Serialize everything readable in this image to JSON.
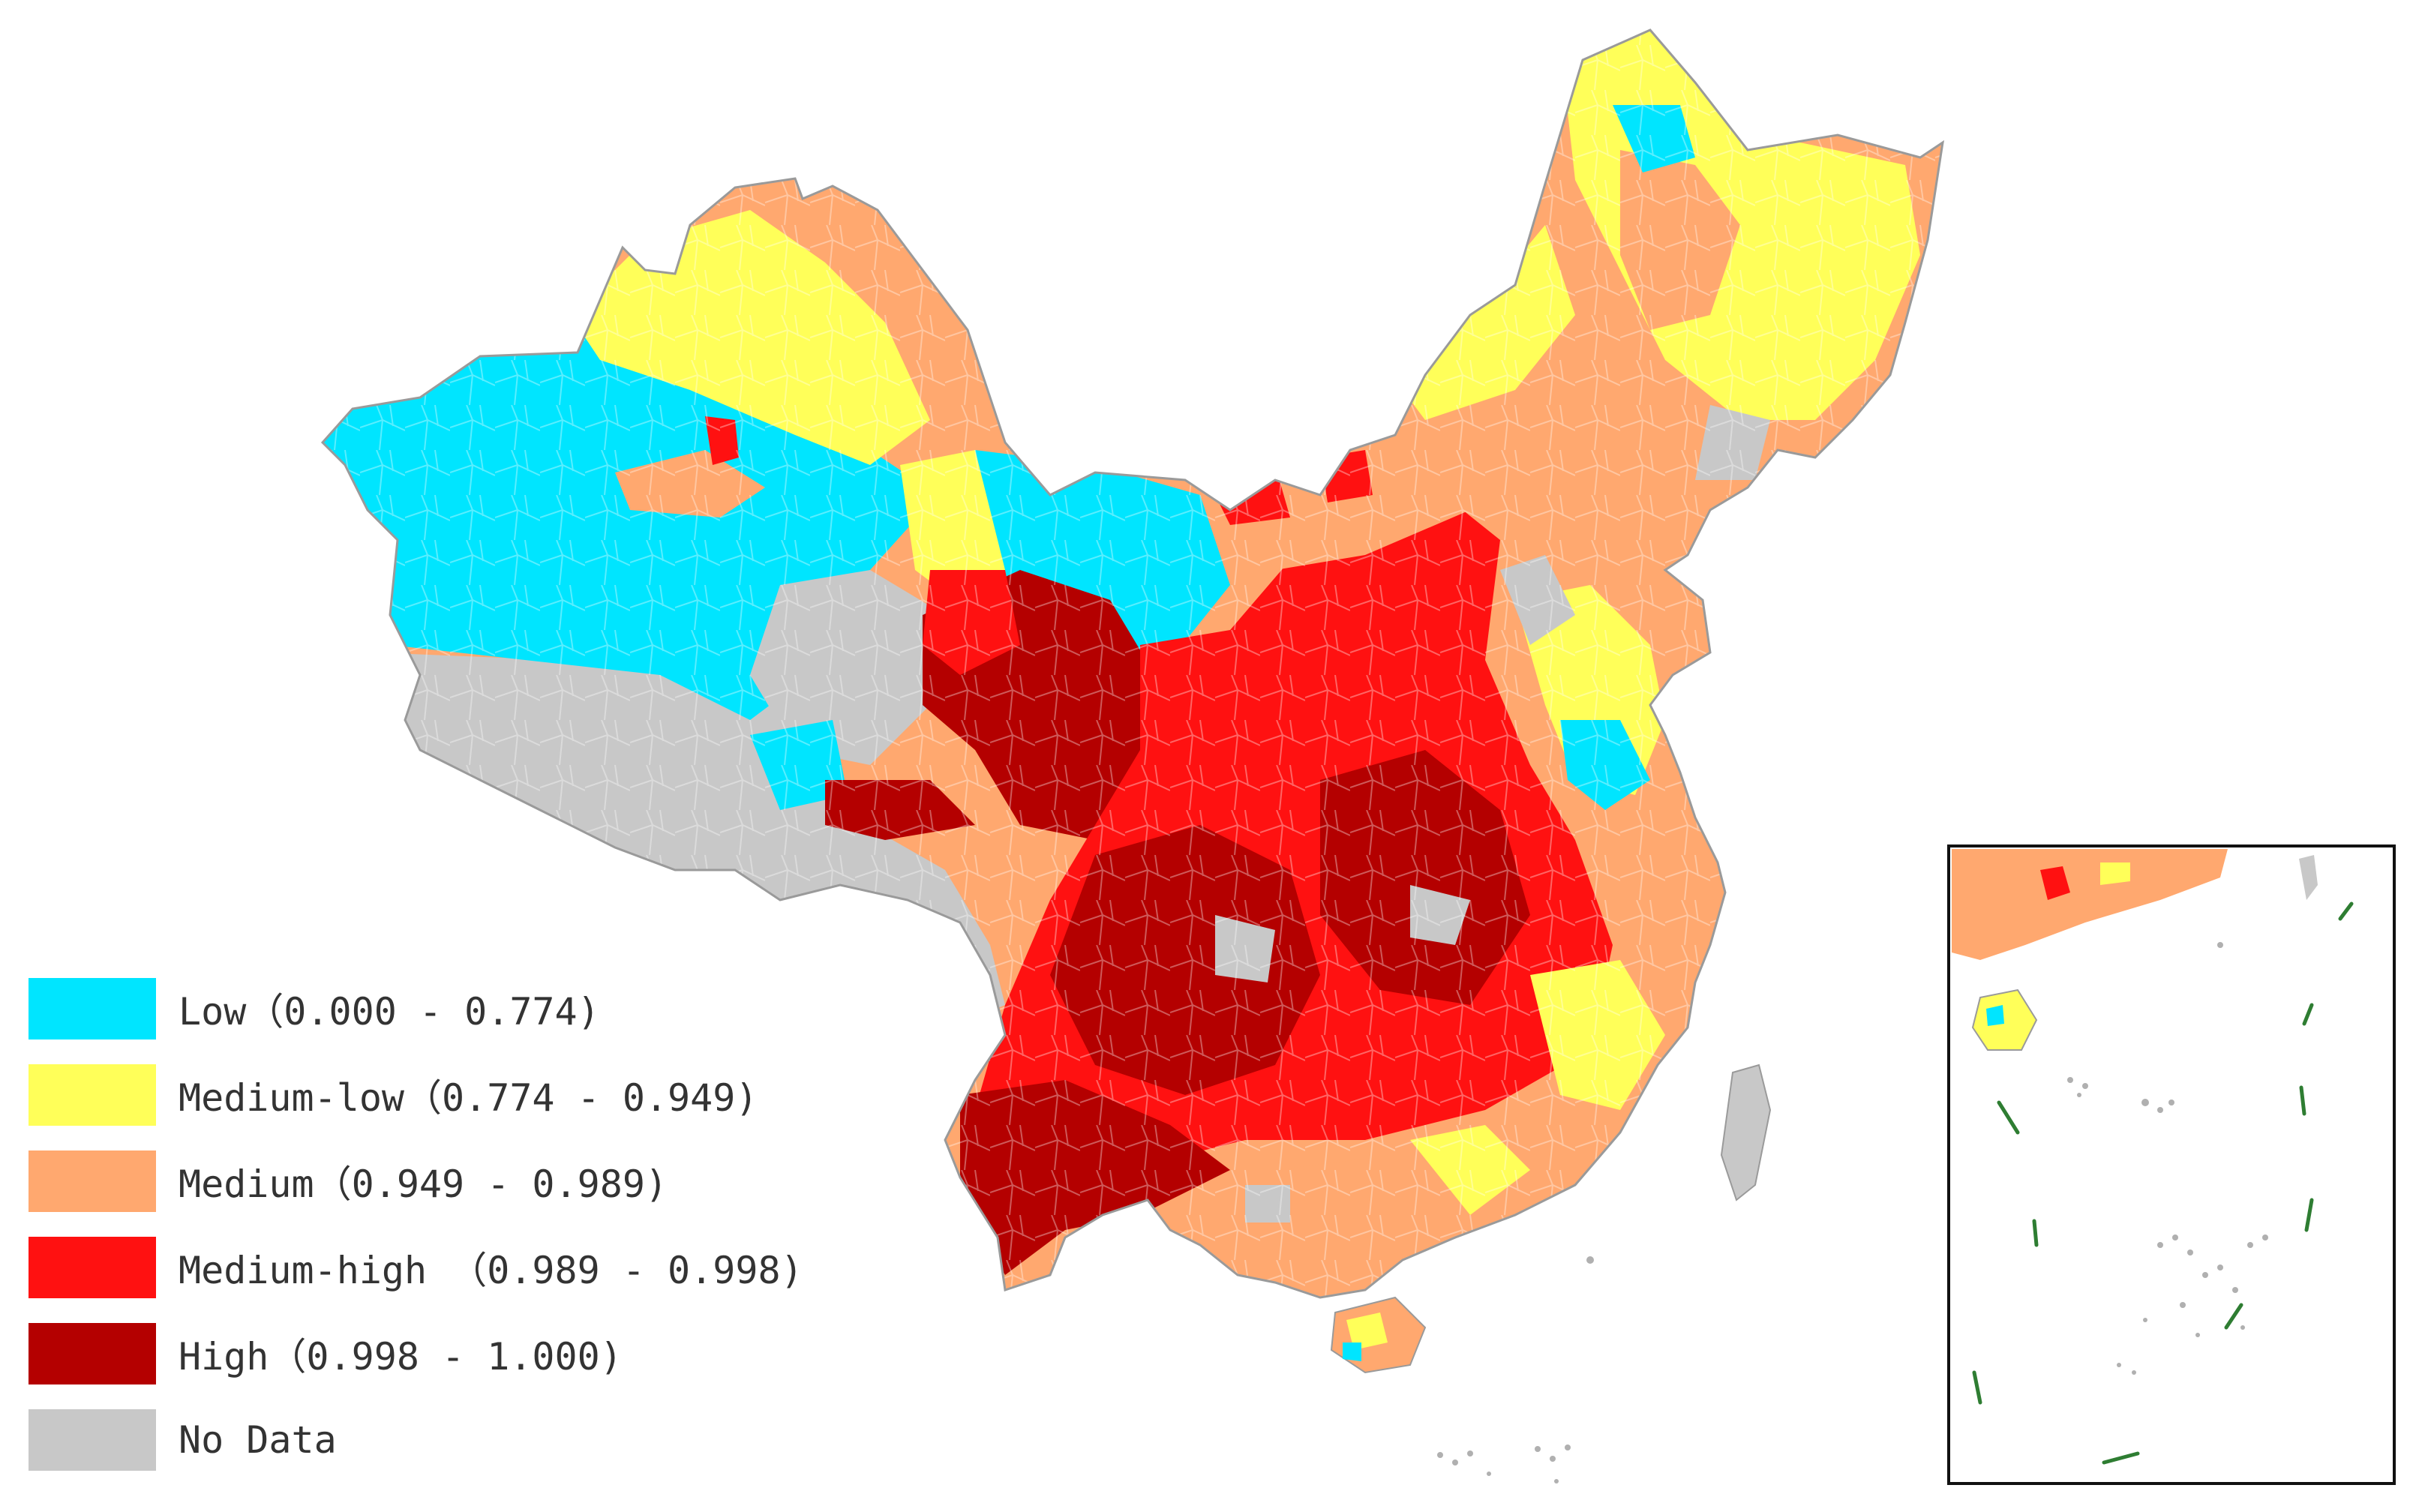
{
  "map": {
    "region": "China",
    "classification_colors": {
      "low": "#00E5FF",
      "medium_low": "#FFFF59",
      "medium": "#FFA86F",
      "medium_high": "#FF1111",
      "high": "#B40000",
      "no_data": "#C8C8C8"
    },
    "inset": {
      "content": "South China Sea islands",
      "boundary_color": "#2E7D32"
    }
  },
  "legend": {
    "items": [
      {
        "key": "low",
        "label": "Low（0.000 - 0.774)",
        "color": "#00E5FF"
      },
      {
        "key": "medium_low",
        "label": "Medium-low（0.774 - 0.949)",
        "color": "#FFFF59"
      },
      {
        "key": "medium",
        "label": "Medium（0.949 - 0.989)",
        "color": "#FFA86F"
      },
      {
        "key": "medium_high",
        "label": "Medium-high （0.989 - 0.998)",
        "color": "#FF1111"
      },
      {
        "key": "high",
        "label": "High（0.998 - 1.000)",
        "color": "#B40000"
      },
      {
        "key": "no_data",
        "label": "No Data",
        "color": "#C8C8C8"
      }
    ]
  }
}
